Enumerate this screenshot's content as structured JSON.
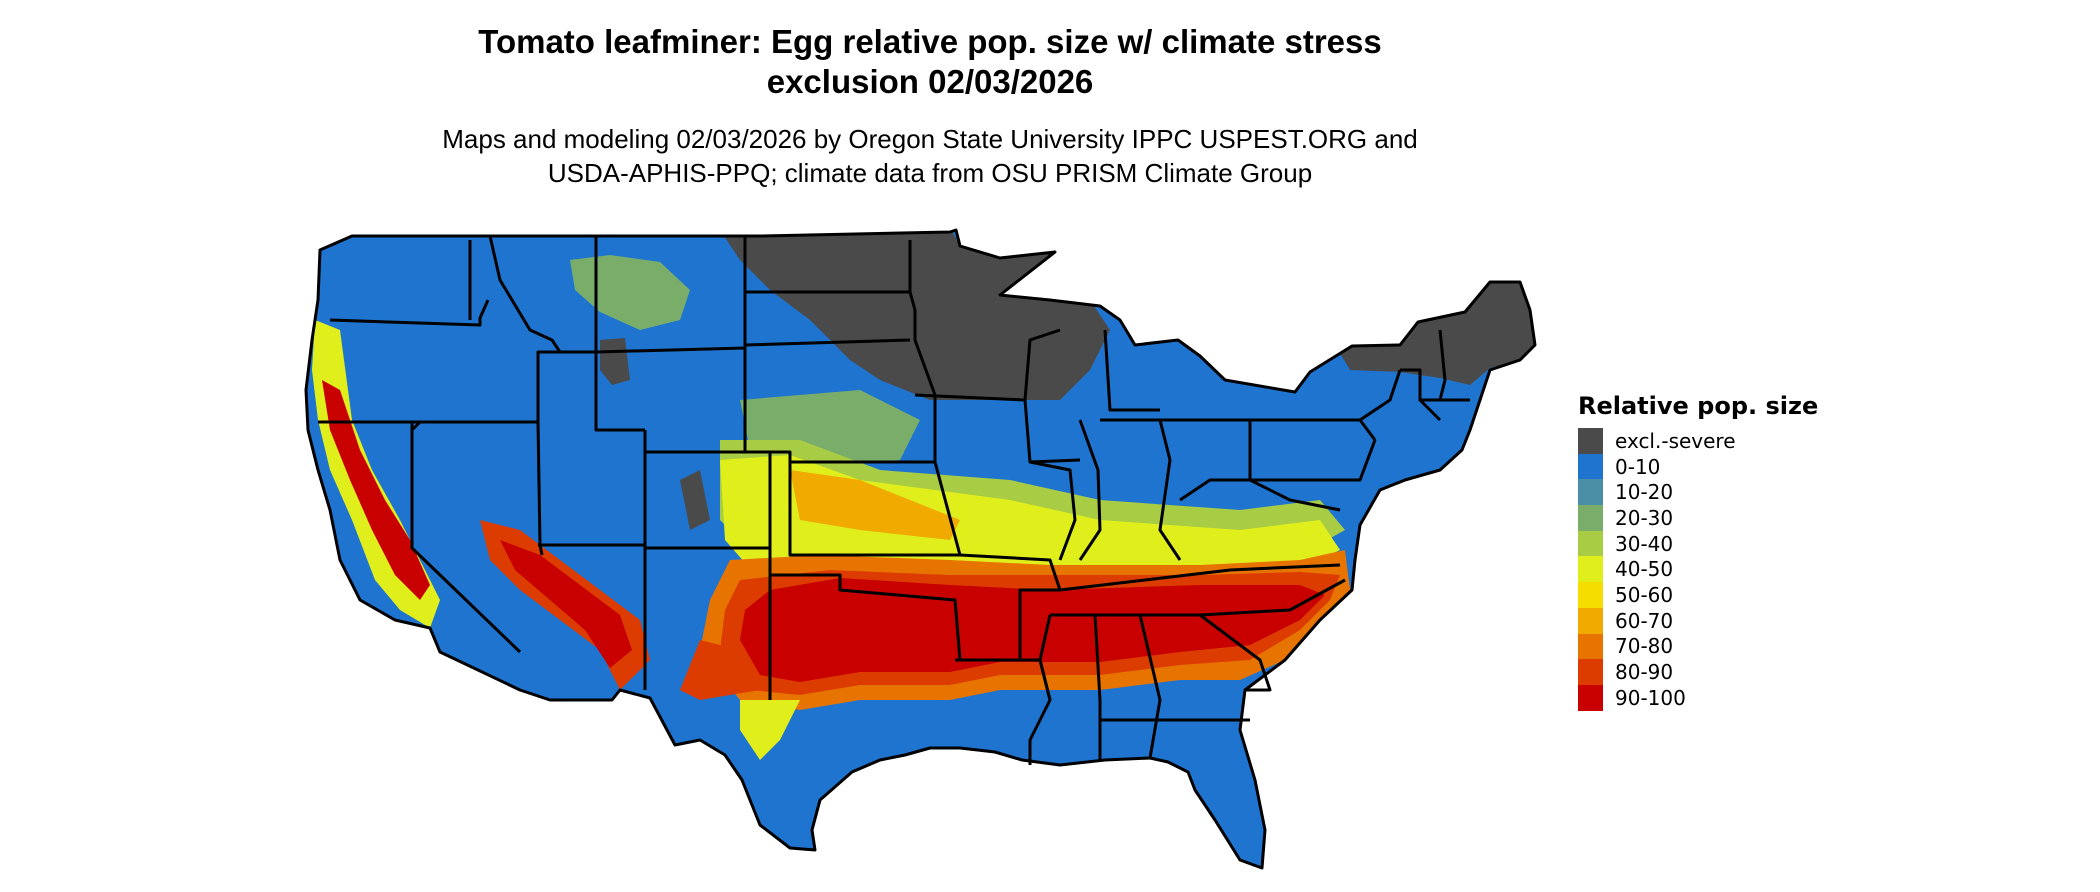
{
  "title": {
    "line1": "Tomato leafminer: Egg relative pop. size w/ climate stress",
    "line2": "exclusion 02/03/2026"
  },
  "subtitle": {
    "line1": "Maps and modeling 02/03/2026 by Oregon State University IPPC USPEST.ORG and",
    "line2": "USDA-APHIS-PPQ; climate data from OSU PRISM Climate Group"
  },
  "legend": {
    "title": "Relative pop. size",
    "items": [
      {
        "label": "excl.-severe",
        "color": "#4a4a4a"
      },
      {
        "label": "0-10",
        "color": "#1f74cf"
      },
      {
        "label": "10-20",
        "color": "#4a8fa6"
      },
      {
        "label": "20-30",
        "color": "#7aad6a"
      },
      {
        "label": "30-40",
        "color": "#a8cc43"
      },
      {
        "label": "40-50",
        "color": "#e0ef1c"
      },
      {
        "label": "50-60",
        "color": "#f5dd00"
      },
      {
        "label": "60-70",
        "color": "#f0aa00"
      },
      {
        "label": "70-80",
        "color": "#e87400"
      },
      {
        "label": "80-90",
        "color": "#dc3c00"
      },
      {
        "label": "90-100",
        "color": "#c80000"
      }
    ]
  },
  "map": {
    "region": "contiguous-united-states",
    "base_color": "#1f74cf",
    "border_color": "#000000"
  }
}
